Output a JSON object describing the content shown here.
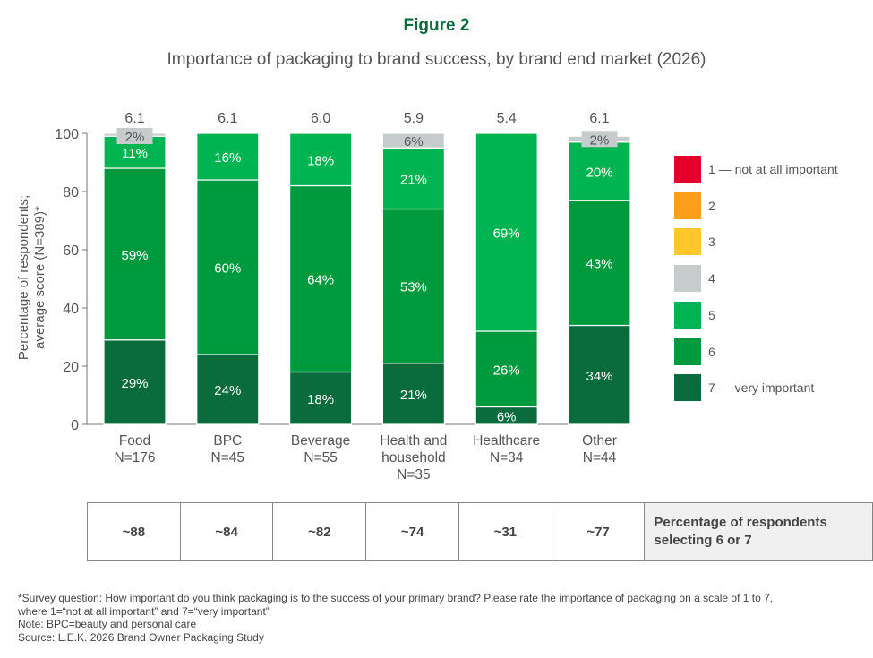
{
  "header": {
    "figure": "Figure 2",
    "subtitle": "Importance of packaging to brand success, by brand end market (2026)"
  },
  "chart_data": {
    "type": "bar",
    "stacked": true,
    "ylabel": [
      "Percentage of respondents;",
      "average score (N=389)*"
    ],
    "ylim": [
      0,
      100
    ],
    "yticks": [
      "0",
      "20",
      "40",
      "60",
      "80",
      "100"
    ],
    "grid": false,
    "legend_position": "right",
    "categories": [
      [
        "Food",
        "N=176"
      ],
      [
        "BPC",
        "N=45"
      ],
      [
        "Beverage",
        "N=55"
      ],
      [
        "Health and",
        "household",
        "N=35"
      ],
      [
        "Healthcare",
        "N=34"
      ],
      [
        "Other",
        "N=44"
      ]
    ],
    "average_scores": [
      "6.1",
      "6.1",
      "6.0",
      "5.9",
      "5.4",
      "6.1"
    ],
    "series": [
      {
        "name": "1 — not at all important",
        "color": "#e4002b",
        "values": [
          0,
          0,
          0,
          0,
          0,
          0
        ]
      },
      {
        "name": "2",
        "color": "#ff9e1b",
        "values": [
          0,
          0,
          0,
          0,
          0,
          0
        ]
      },
      {
        "name": "3",
        "color": "#ffc72c",
        "values": [
          0,
          0,
          0,
          0,
          0,
          0
        ]
      },
      {
        "name": "4",
        "color": "#c6cccb",
        "values": [
          2,
          0,
          0,
          6,
          0,
          2
        ]
      },
      {
        "name": "5",
        "color": "#00b451",
        "values": [
          11,
          16,
          18,
          21,
          69,
          20
        ]
      },
      {
        "name": "6",
        "color": "#009a3e",
        "values": [
          59,
          60,
          64,
          53,
          26,
          43
        ]
      },
      {
        "name": "7 — very important",
        "color": "#0a6b3d",
        "values": [
          29,
          24,
          18,
          21,
          6,
          34
        ]
      }
    ]
  },
  "table": {
    "values": [
      "~88",
      "~84",
      "~82",
      "~74",
      "~31",
      "~77"
    ],
    "header": [
      "Percentage of respondents",
      "selecting 6 or 7"
    ]
  },
  "notes": [
    "*Survey question: How important do you think packaging is to the success of your primary brand? Please rate the importance of packaging on a scale of 1 to 7,",
    "where 1=“not at all important” and 7=“very important”",
    "Note: BPC=beauty and personal care",
    "Source: L.E.K. 2026 Brand Owner Packaging Study"
  ]
}
